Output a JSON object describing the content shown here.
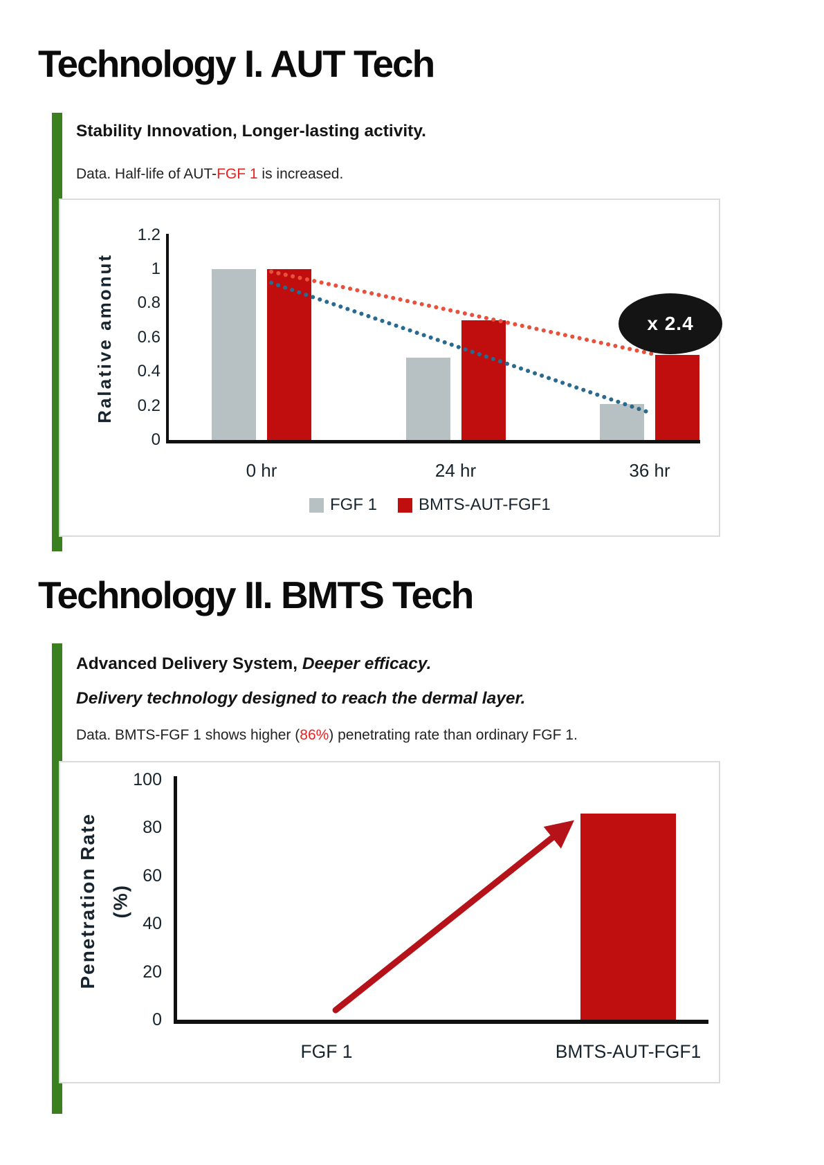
{
  "page": {
    "title1": "Technology I. AUT Tech",
    "title2": "Technology II. BMTS Tech"
  },
  "section1": {
    "subtitle": "Stability Innovation, Longer-lasting activity.",
    "data_prefix": "Data. Half-life of AUT-",
    "data_highlight": "FGF 1",
    "data_suffix": " is increased."
  },
  "section2": {
    "subtitle_bold": "Advanced Delivery System,",
    "subtitle_italic": " Deeper efficacy.",
    "subtitle_line2": "Delivery technology designed to reach the dermal layer.",
    "data_prefix": "Data. BMTS-FGF 1 shows higher (",
    "data_highlight": "86%",
    "data_suffix": ") penetrating rate than ordinary FGF 1."
  },
  "colors": {
    "accent_green": "#3a8020",
    "highlight_red": "#f01f1f",
    "bar_gray": "#b7c1c3",
    "bar_red": "#c00d0d",
    "trend_red": "#e8513c",
    "trend_blue": "#2a6a8e",
    "arrow_red": "#b5121a",
    "badge_black": "#141414"
  },
  "chart_data": [
    {
      "type": "bar",
      "title": "Half-life of AUT-FGF 1",
      "categories": [
        "0 hr",
        "24 hr",
        "36 hr"
      ],
      "series": [
        {
          "name": "FGF 1",
          "color": "#b7c1c3",
          "values": [
            1.0,
            0.48,
            0.21
          ]
        },
        {
          "name": "BMTS-AUT-FGF1",
          "color": "#c00d0d",
          "values": [
            1.0,
            0.7,
            0.5
          ]
        }
      ],
      "xlabel": "",
      "ylabel": "Ralative amonut",
      "yticks": [
        1.2,
        1,
        0.8,
        0.6,
        0.4,
        0.2,
        0
      ],
      "ylim": [
        0,
        1.2
      ],
      "grid": false,
      "legend_position": "bottom",
      "annotation": {
        "text": "x 2.4",
        "shape": "ellipse",
        "color": "#141414",
        "text_color": "#ffffff"
      },
      "trendlines": [
        {
          "color": "#e8513c",
          "points": [
            [
              0.05,
              0.985
            ],
            [
              2.03,
              0.5
            ]
          ]
        },
        {
          "color": "#2a6a8e",
          "points": [
            [
              0.05,
              0.92
            ],
            [
              2.0,
              0.16
            ]
          ]
        }
      ]
    },
    {
      "type": "bar",
      "title": "Penetration rate of BMTS-FGF 1",
      "categories": [
        "FGF 1",
        "BMTS-AUT-FGF1"
      ],
      "values": [
        0,
        86
      ],
      "bar_color": "#bf0f0f",
      "xlabel": "",
      "ylabel": "Penetration Rate (%)",
      "ylabel_lines": [
        "Penetration Rate",
        "(%)"
      ],
      "yticks": [
        100,
        80,
        60,
        40,
        20,
        0
      ],
      "ylim": [
        0,
        100
      ],
      "grid": false,
      "legend_position": "none",
      "arrow": {
        "color": "#b5121a",
        "from": [
          0.03,
          4
        ],
        "to": [
          0.8,
          81
        ]
      }
    }
  ]
}
